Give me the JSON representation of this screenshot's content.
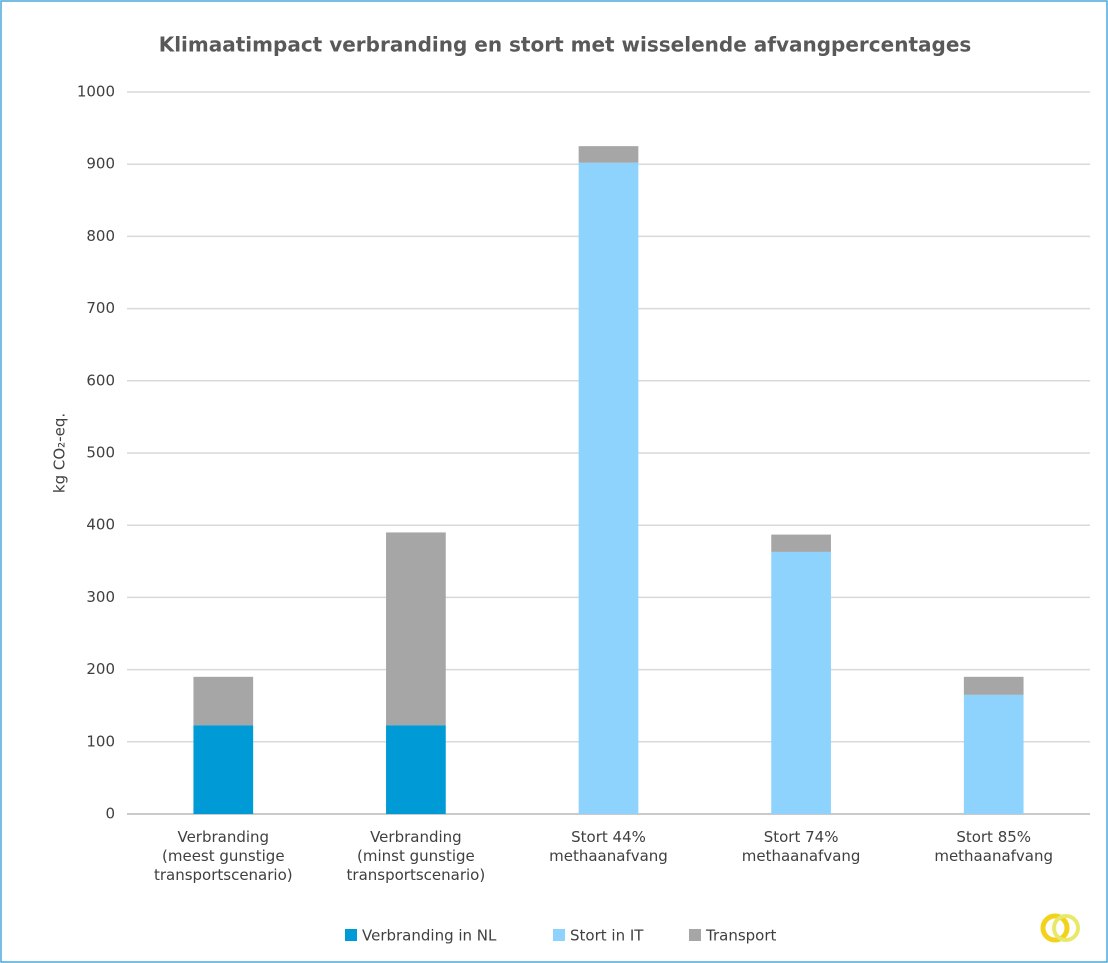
{
  "chart_data": {
    "type": "stacked_bar",
    "title": "Klimaatimpact verbranding en stort met wisselende afvangpercentages",
    "y_label": "kg CO₂-eq.",
    "categories": [
      "Verbranding\n(meest gunstige\ntransportscenario)",
      "Verbranding\n(minst gunstige\ntransportscenario)",
      "Stort 44%\nmethaanafvang",
      "Stort 74%\nmethaanafvang",
      "Stort 85%\nmethaanafvang"
    ],
    "series": [
      {
        "name": "Verbranding in NL",
        "color": "#009ad6",
        "values": [
          123,
          123,
          null,
          null,
          null
        ]
      },
      {
        "name": "Stort in IT",
        "color": "#8dd3fd",
        "values": [
          null,
          null,
          902,
          363,
          165
        ]
      },
      {
        "name": "Transport",
        "color": "#a6a6a6",
        "values": [
          67,
          267,
          23,
          24,
          25
        ]
      }
    ],
    "ylim": [
      0,
      1000
    ],
    "yticks": [
      0,
      100,
      200,
      300,
      400,
      500,
      600,
      700,
      800,
      900,
      1000
    ],
    "grid": true,
    "legend": "bottom"
  }
}
